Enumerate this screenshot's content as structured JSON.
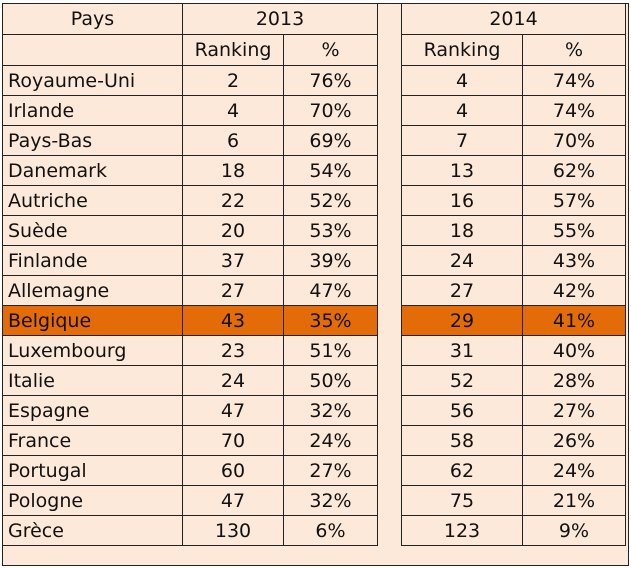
{
  "header": {
    "country_label": "Pays",
    "year_a": "2013",
    "year_b": "2014",
    "ranking_label": "Ranking",
    "percent_label": "%"
  },
  "highlight_color": "#e36c09",
  "background_color": "#fde9d9",
  "rows": [
    {
      "country": "Royaume-Uni",
      "rank_2013": "2",
      "pct_2013": "76%",
      "rank_2014": "4",
      "pct_2014": "74%"
    },
    {
      "country": "Irlande",
      "rank_2013": "4",
      "pct_2013": "70%",
      "rank_2014": "4",
      "pct_2014": "74%"
    },
    {
      "country": "Pays-Bas",
      "rank_2013": "6",
      "pct_2013": "69%",
      "rank_2014": "7",
      "pct_2014": "70%"
    },
    {
      "country": "Danemark",
      "rank_2013": "18",
      "pct_2013": "54%",
      "rank_2014": "13",
      "pct_2014": "62%"
    },
    {
      "country": "Autriche",
      "rank_2013": "22",
      "pct_2013": "52%",
      "rank_2014": "16",
      "pct_2014": "57%"
    },
    {
      "country": "Suède",
      "rank_2013": "20",
      "pct_2013": "53%",
      "rank_2014": "18",
      "pct_2014": "55%"
    },
    {
      "country": "Finlande",
      "rank_2013": "37",
      "pct_2013": "39%",
      "rank_2014": "24",
      "pct_2014": "43%"
    },
    {
      "country": "Allemagne",
      "rank_2013": "27",
      "pct_2013": "47%",
      "rank_2014": "27",
      "pct_2014": "42%"
    },
    {
      "country": "Belgique",
      "rank_2013": "43",
      "pct_2013": "35%",
      "rank_2014": "29",
      "pct_2014": "41%",
      "highlight": true
    },
    {
      "country": "Luxembourg",
      "rank_2013": "23",
      "pct_2013": "51%",
      "rank_2014": "31",
      "pct_2014": "40%"
    },
    {
      "country": "Italie",
      "rank_2013": "24",
      "pct_2013": "50%",
      "rank_2014": "52",
      "pct_2014": "28%"
    },
    {
      "country": "Espagne",
      "rank_2013": "47",
      "pct_2013": "32%",
      "rank_2014": "56",
      "pct_2014": "27%"
    },
    {
      "country": "France",
      "rank_2013": "70",
      "pct_2013": "24%",
      "rank_2014": "58",
      "pct_2014": "26%"
    },
    {
      "country": "Portugal",
      "rank_2013": "60",
      "pct_2013": "27%",
      "rank_2014": "62",
      "pct_2014": "24%"
    },
    {
      "country": "Pologne",
      "rank_2013": "47",
      "pct_2013": "32%",
      "rank_2014": "75",
      "pct_2014": "21%"
    },
    {
      "country": "Grèce",
      "rank_2013": "130",
      "pct_2013": "6%",
      "rank_2014": "123",
      "pct_2014": "9%"
    }
  ]
}
